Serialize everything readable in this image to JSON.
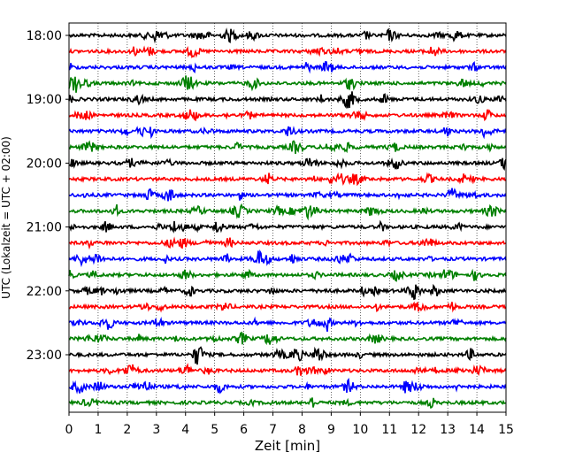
{
  "chart_data": {
    "type": "line",
    "title": "",
    "xlabel": "Zeit  [min]",
    "ylabel": "UTC (Lokalzeit = UTC + 02:00)",
    "xlim": [
      0,
      15
    ],
    "x_ticks": [
      "0",
      "1",
      "2",
      "3",
      "4",
      "5",
      "6",
      "7",
      "8",
      "9",
      "10",
      "11",
      "12",
      "13",
      "14",
      "15"
    ],
    "y_tick_labels": [
      "18:00",
      "19:00",
      "20:00",
      "21:00",
      "22:00",
      "23:00"
    ],
    "grid": "vertical dotted lines at each minute",
    "trace_interval_minutes": 15,
    "trace_start_times": [
      "18:00",
      "18:15",
      "18:30",
      "18:45",
      "19:00",
      "19:15",
      "19:30",
      "19:45",
      "20:00",
      "20:15",
      "20:30",
      "20:45",
      "21:00",
      "21:15",
      "21:30",
      "21:45",
      "22:00",
      "22:15",
      "22:30",
      "22:45",
      "23:00",
      "23:15",
      "23:30",
      "23:45"
    ],
    "trace_color_cycle": [
      "#000000",
      "#ff0000",
      "#0000ff",
      "#008000"
    ]
  }
}
